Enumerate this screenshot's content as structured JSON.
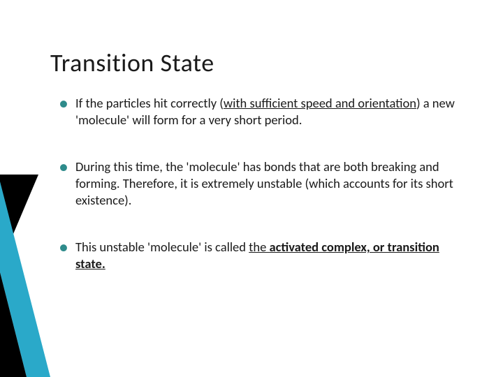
{
  "slide": {
    "title": "Transition State",
    "bullets": [
      {
        "segments": [
          {
            "text": "If the particles hit correctly (",
            "style": ""
          },
          {
            "text": "with sufficient speed and orientation",
            "style": "u"
          },
          {
            "text": ") a new 'molecule' will form for a very short period.",
            "style": ""
          }
        ]
      },
      {
        "segments": [
          {
            "text": "During this time, the 'molecule' has bonds that are both breaking and forming. Therefore, it is extremely unstable (which accounts for its short existence).",
            "style": ""
          }
        ]
      },
      {
        "segments": [
          {
            "text": "This unstable 'molecule' is called ",
            "style": ""
          },
          {
            "text": "the ",
            "style": "u"
          },
          {
            "text": "activated complex, or transition state.",
            "style": "u b"
          }
        ]
      }
    ]
  },
  "accent": {
    "black": "#000000",
    "teal": "#2aa9c9",
    "background": "#ffffff"
  }
}
